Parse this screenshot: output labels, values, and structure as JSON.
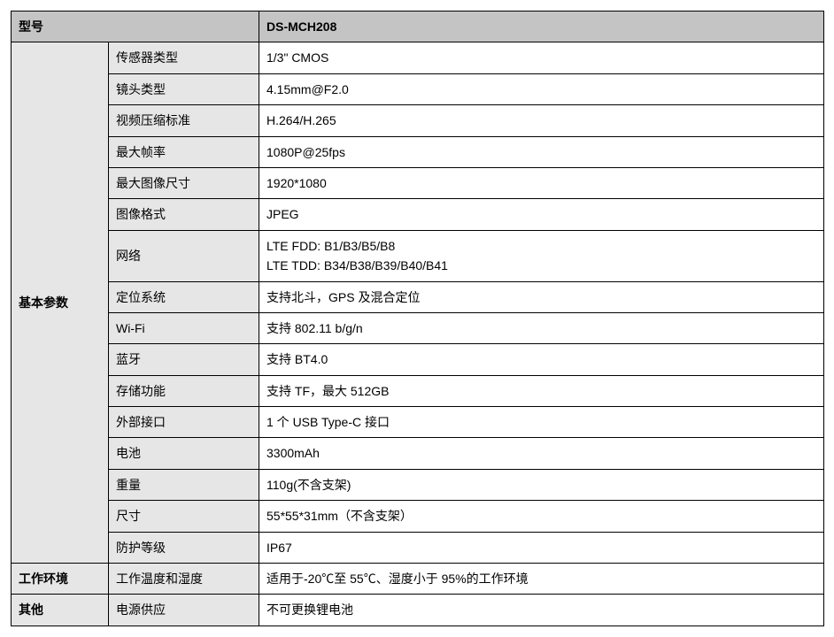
{
  "header": {
    "model_label": "型号",
    "model_value": "DS-MCH208"
  },
  "sections": [
    {
      "category": "基本参数",
      "rows": [
        {
          "label": "传感器类型",
          "value": "1/3\" CMOS"
        },
        {
          "label": "镜头类型",
          "value": "4.15mm@F2.0"
        },
        {
          "label": "视频压缩标准",
          "value": "H.264/H.265"
        },
        {
          "label": "最大帧率",
          "value": "1080P@25fps"
        },
        {
          "label": "最大图像尺寸",
          "value": "1920*1080"
        },
        {
          "label": "图像格式",
          "value": "JPEG"
        },
        {
          "label": "网络",
          "value": "LTE FDD: B1/B3/B5/B8\nLTE TDD: B34/B38/B39/B40/B41"
        },
        {
          "label": "定位系统",
          "value": "支持北斗，GPS 及混合定位"
        },
        {
          "label": "Wi-Fi",
          "value": "支持 802.11 b/g/n"
        },
        {
          "label": "蓝牙",
          "value": "支持 BT4.0"
        },
        {
          "label": "存储功能",
          "value": "支持 TF，最大 512GB"
        },
        {
          "label": "外部接口",
          "value": "1 个 USB Type-C 接口"
        },
        {
          "label": "电池",
          "value": "3300mAh"
        },
        {
          "label": "重量",
          "value": "110g(不含支架)"
        },
        {
          "label": "尺寸",
          "value": "55*55*31mm（不含支架）"
        },
        {
          "label": "防护等级",
          "value": "IP67"
        }
      ]
    },
    {
      "category": "工作环境",
      "rows": [
        {
          "label": "工作温度和湿度",
          "value": "适用于-20℃至 55℃、湿度小于 95%的工作环境"
        }
      ]
    },
    {
      "category": "其他",
      "rows": [
        {
          "label": "电源供应",
          "value": "不可更换锂电池"
        }
      ]
    }
  ]
}
